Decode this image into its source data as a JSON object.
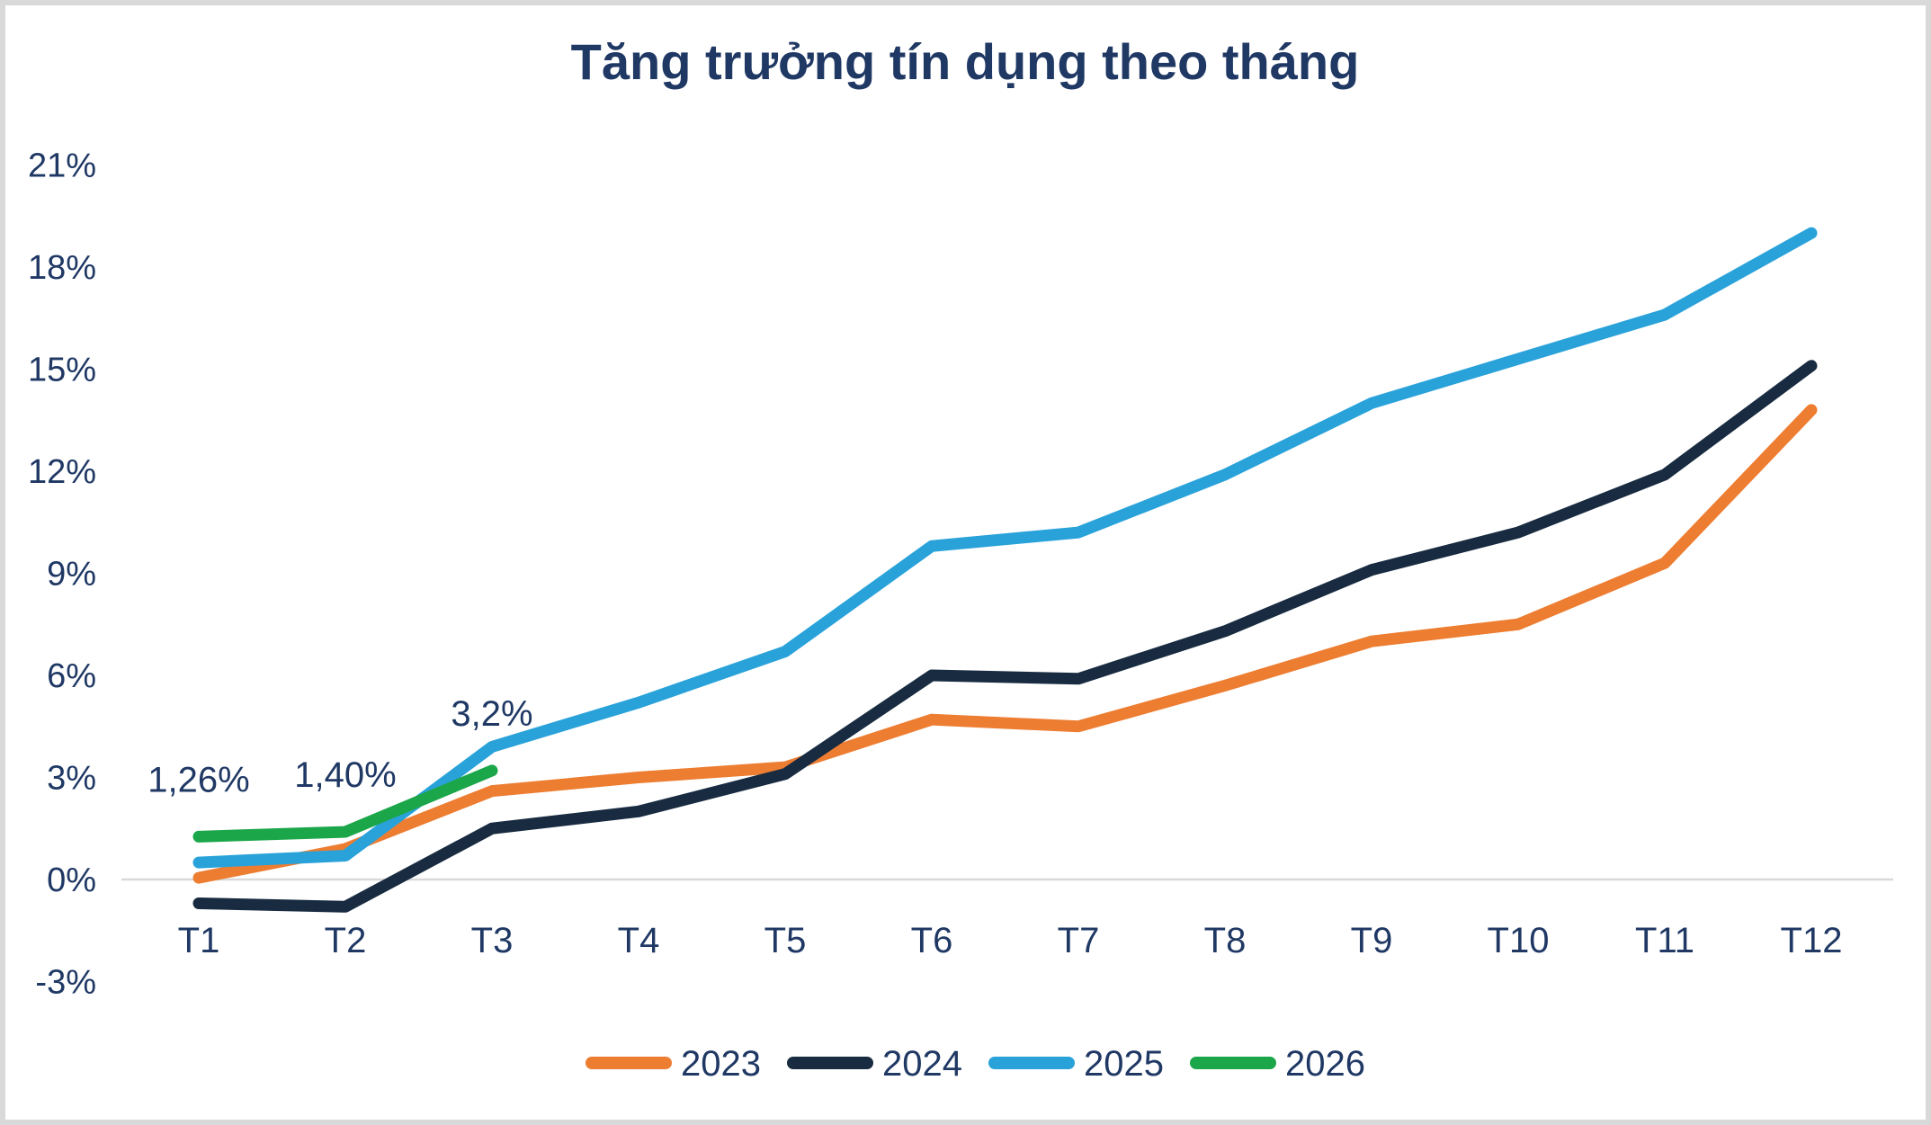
{
  "frame": {
    "background": "#FFFFFF",
    "border_color": "#D9D9D9"
  },
  "chart_data": {
    "type": "line",
    "title": "Tăng trưởng tín dụng theo tháng",
    "title_color": "#1F3864",
    "xlabel": "",
    "ylabel": "",
    "categories": [
      "T1",
      "T2",
      "T3",
      "T4",
      "T5",
      "T6",
      "T7",
      "T8",
      "T9",
      "T10",
      "T11",
      "T12"
    ],
    "y_ticks": [
      {
        "label": "21%",
        "value": 21
      },
      {
        "label": "18%",
        "value": 18
      },
      {
        "label": "15%",
        "value": 15
      },
      {
        "label": "12%",
        "value": 12
      },
      {
        "label": "9%",
        "value": 9
      },
      {
        "label": "6%",
        "value": 6
      },
      {
        "label": "3%",
        "value": 3
      },
      {
        "label": "0%",
        "value": 0
      },
      {
        "label": "-3%",
        "value": -3
      }
    ],
    "ylim": [
      -3,
      21
    ],
    "grid": "zero-line-only",
    "zero_line_color": "#D9D9D9",
    "axis_text_color": "#1F3864",
    "series": [
      {
        "name": "2023",
        "color": "#ED7D31",
        "values": [
          0.05,
          0.9,
          2.6,
          3.0,
          3.3,
          4.7,
          4.5,
          5.7,
          7.0,
          7.5,
          9.3,
          13.8
        ]
      },
      {
        "name": "2024",
        "color": "#182B40",
        "values": [
          -0.7,
          -0.8,
          1.5,
          2.0,
          3.1,
          6.0,
          5.9,
          7.3,
          9.1,
          10.2,
          11.9,
          15.1
        ]
      },
      {
        "name": "2025",
        "color": "#29A2DA",
        "values": [
          0.5,
          0.7,
          3.9,
          5.2,
          6.7,
          9.8,
          10.2,
          11.9,
          14.0,
          15.3,
          16.6,
          19.0
        ]
      },
      {
        "name": "2026",
        "color": "#1BA64A",
        "values": [
          1.26,
          1.4,
          3.2,
          null,
          null,
          null,
          null,
          null,
          null,
          null,
          null,
          null
        ]
      }
    ],
    "annotations": [
      {
        "text": "1,26%",
        "series": "2026",
        "category": "T1",
        "value": 1.26
      },
      {
        "text": "1,40%",
        "series": "2026",
        "category": "T2",
        "value": 1.4
      },
      {
        "text": "3,2%",
        "series": "2026",
        "category": "T3",
        "value": 3.2
      }
    ],
    "legend": {
      "position": "bottom",
      "items": [
        {
          "label": "2023",
          "color": "#ED7D31"
        },
        {
          "label": "2024",
          "color": "#182B40"
        },
        {
          "label": "2025",
          "color": "#29A2DA"
        },
        {
          "label": "2026",
          "color": "#1BA64A"
        }
      ]
    }
  }
}
